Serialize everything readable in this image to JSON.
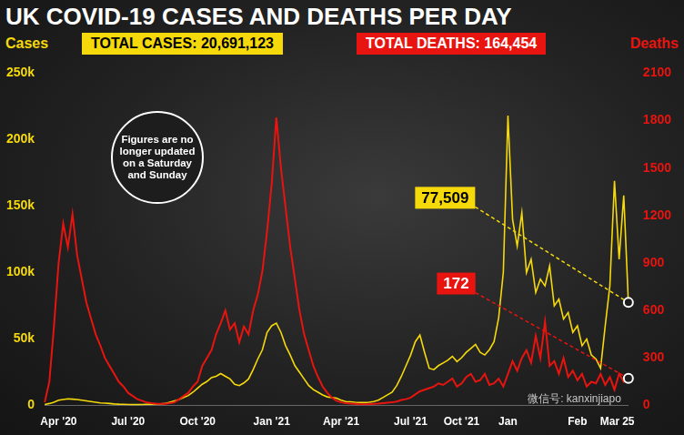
{
  "chart_data": {
    "type": "line",
    "title": "UK COVID-19 CASES AND DEATHS PER DAY",
    "totals": [
      {
        "label": "TOTAL CASES: 20,691,123",
        "color": "#f5d90a"
      },
      {
        "label": "TOTAL DEATHS: 164,454",
        "color": "#e8140f"
      }
    ],
    "y_label": "Cases",
    "y2_label": "Deaths",
    "note": "Figures are no longer updated on a Saturday and Sunday",
    "watermark": "微信号: kanxinjiapo",
    "categories": [
      null,
      null,
      null,
      "Apr '20",
      null,
      null,
      null,
      null,
      null,
      null,
      null,
      null,
      null,
      null,
      null,
      null,
      null,
      null,
      "Jul '20",
      null,
      null,
      null,
      null,
      null,
      null,
      null,
      null,
      null,
      null,
      null,
      null,
      null,
      null,
      "Oct '20",
      null,
      null,
      null,
      null,
      null,
      null,
      null,
      null,
      null,
      null,
      null,
      null,
      null,
      null,
      null,
      "Jan '21",
      null,
      null,
      null,
      null,
      null,
      null,
      null,
      null,
      null,
      null,
      null,
      null,
      null,
      null,
      "Apr '21",
      null,
      null,
      null,
      null,
      null,
      null,
      null,
      null,
      null,
      null,
      null,
      null,
      null,
      null,
      "Jul '21",
      null,
      null,
      null,
      null,
      null,
      null,
      null,
      null,
      null,
      null,
      "Oct '21",
      null,
      null,
      null,
      null,
      null,
      null,
      null,
      null,
      null,
      "Jan",
      null,
      null,
      null,
      null,
      null,
      null,
      null,
      null,
      null,
      null,
      null,
      null,
      null,
      null,
      "Feb",
      null,
      null,
      null,
      null,
      null,
      null,
      "Mar",
      null,
      null,
      null,
      "25"
    ],
    "series": [
      {
        "name": "Cases",
        "color": "#f5d90a",
        "values": [
          800,
          1500,
          2500,
          4000,
          4500,
          5000,
          4800,
          4500,
          4000,
          3500,
          3000,
          2500,
          2000,
          1800,
          1500,
          1200,
          1000,
          900,
          800,
          700,
          700,
          800,
          900,
          1000,
          1100,
          1200,
          1500,
          2500,
          3500,
          4500,
          6000,
          7500,
          10000,
          13000,
          16000,
          18000,
          21000,
          22000,
          24000,
          22000,
          20000,
          16000,
          15000,
          17000,
          20000,
          27000,
          35000,
          42000,
          55000,
          60000,
          62000,
          55000,
          45000,
          38000,
          30000,
          25000,
          20000,
          15000,
          12000,
          10000,
          8000,
          6500,
          6000,
          5500,
          4000,
          3000,
          2800,
          2500,
          2300,
          2200,
          2500,
          3000,
          4000,
          6000,
          8000,
          10000,
          15000,
          22000,
          30000,
          38000,
          48000,
          53000,
          40000,
          28000,
          27000,
          30000,
          32000,
          34000,
          37000,
          33000,
          36000,
          40000,
          43000,
          46000,
          40000,
          38000,
          42000,
          48000,
          66000,
          100000,
          218000,
          140000,
          120000,
          145000,
          100000,
          110000,
          85000,
          95000,
          90000,
          105000,
          75000,
          80000,
          65000,
          70000,
          55000,
          60000,
          45000,
          50000,
          38000,
          35000,
          28000,
          60000,
          90000,
          169000,
          110000,
          158000,
          77509
        ]
      },
      {
        "name": "Deaths",
        "color": "#e8140f",
        "axis": "y2",
        "values": [
          20,
          150,
          500,
          900,
          1150,
          1000,
          1210,
          950,
          800,
          650,
          550,
          450,
          380,
          300,
          250,
          200,
          150,
          120,
          80,
          60,
          40,
          30,
          20,
          15,
          12,
          10,
          10,
          15,
          20,
          40,
          60,
          80,
          120,
          150,
          250,
          300,
          350,
          450,
          520,
          600,
          480,
          520,
          400,
          500,
          450,
          600,
          700,
          850,
          1100,
          1400,
          1820,
          1500,
          1250,
          1000,
          800,
          600,
          450,
          350,
          250,
          180,
          120,
          80,
          50,
          30,
          20,
          15,
          12,
          10,
          8,
          8,
          8,
          10,
          12,
          15,
          18,
          20,
          25,
          35,
          40,
          50,
          70,
          90,
          100,
          110,
          120,
          140,
          130,
          150,
          170,
          120,
          140,
          180,
          200,
          150,
          160,
          200,
          130,
          140,
          170,
          120,
          200,
          280,
          220,
          300,
          350,
          270,
          440,
          300,
          530,
          250,
          280,
          200,
          300,
          180,
          220,
          160,
          200,
          120,
          150,
          140,
          200,
          130,
          180,
          100,
          200,
          150,
          172
        ]
      }
    ],
    "ylim": [
      0,
      250000
    ],
    "yticks": [
      0,
      {
        "value": 50000,
        "label": "50k"
      },
      {
        "value": 100000,
        "label": "100k"
      },
      {
        "value": 150000,
        "label": "150k"
      },
      {
        "value": 200000,
        "label": "200k"
      },
      {
        "value": 250000,
        "label": "250k"
      }
    ],
    "y2lim": [
      0,
      2100
    ],
    "y2ticks": [
      0,
      300,
      600,
      900,
      1200,
      1500,
      1800,
      2100
    ],
    "grid": false,
    "annotations": [
      {
        "series": "Cases",
        "label": "77,509",
        "value": 77509
      },
      {
        "series": "Deaths",
        "label": "172",
        "value": 172
      }
    ]
  }
}
